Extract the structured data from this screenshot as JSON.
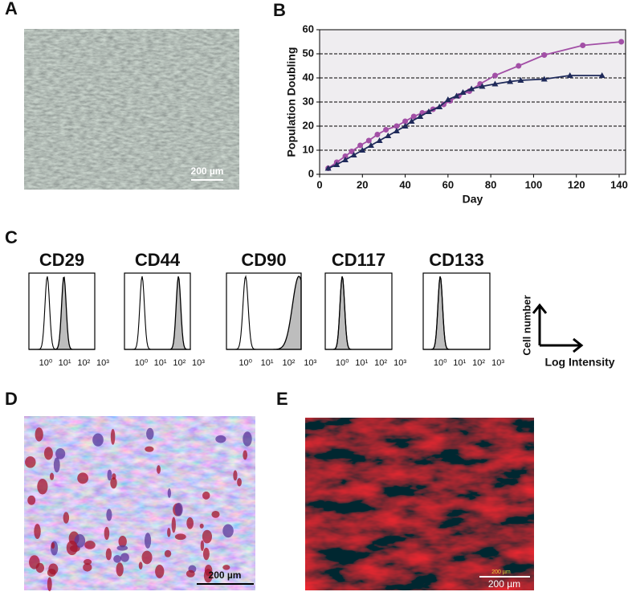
{
  "panels": [
    {
      "label": "A",
      "scale_bar": "200 µm"
    },
    {
      "label": "B"
    },
    {
      "label": "C"
    },
    {
      "label": "D",
      "scale_bar": "200 µm"
    },
    {
      "label": "E",
      "scale_bar": "200 µm",
      "scale_bar_small": "200 µm"
    }
  ],
  "chart_data": {
    "type": "line",
    "ylabel": "Population Doubling",
    "xlabel": "Day",
    "xlim": [
      0,
      143
    ],
    "xticks": [
      0,
      20,
      40,
      60,
      80,
      100,
      120,
      140
    ],
    "ylim": [
      0,
      60
    ],
    "yticks": [
      0,
      10,
      20,
      30,
      40,
      50,
      60
    ],
    "grid": true,
    "series": [
      {
        "color": "#a24fa6",
        "marker": "circle",
        "x": [
          4,
          8,
          12,
          15,
          19,
          23,
          27,
          31,
          36,
          40,
          44,
          48,
          53,
          58,
          61,
          65,
          70,
          75,
          82,
          93,
          105,
          123,
          141
        ],
        "values": [
          2.5,
          5,
          7.5,
          9.5,
          12,
          14,
          16.5,
          18.5,
          20,
          22,
          24,
          25.5,
          27,
          29,
          30.5,
          32.5,
          34.5,
          37.5,
          41,
          45,
          49.5,
          53.5,
          55
        ]
      },
      {
        "color": "#1f2a5a",
        "marker": "triangle",
        "x": [
          4,
          8,
          12,
          16,
          20,
          24,
          28,
          32,
          36,
          40,
          43,
          47,
          51,
          56,
          60,
          64,
          67,
          71,
          76,
          82,
          89,
          94,
          105,
          117,
          132
        ],
        "values": [
          2.5,
          4,
          6,
          8,
          10,
          12,
          14,
          16,
          18,
          20,
          22,
          24,
          26,
          28,
          31,
          32.5,
          34,
          35.5,
          36.5,
          37.5,
          38.5,
          39,
          39.5,
          41,
          41
        ]
      }
    ]
  },
  "flow_cytometry": {
    "type": "histogram-overlay",
    "xscale": "log",
    "xlim": [
      0.13,
      380
    ],
    "xticks": [
      {
        "value": 1,
        "label": "10⁰"
      },
      {
        "value": 10,
        "label": "10¹"
      },
      {
        "value": 100,
        "label": "10²"
      },
      {
        "value": 1000,
        "label": "10³"
      }
    ],
    "histograms": [
      {
        "name": "CD29",
        "isotype_peak": 1.2,
        "stained_peak": 9
      },
      {
        "name": "CD44",
        "isotype_peak": 1.1,
        "stained_peak": 90
      },
      {
        "name": "CD90",
        "isotype_peak": 1.0,
        "stained_peak": 300
      },
      {
        "name": "CD117",
        "isotype_peak": 1.0,
        "stained_peak": 1.0
      },
      {
        "name": "CD133",
        "isotype_peak": 1.0,
        "stained_peak": 1.0
      }
    ],
    "legend": {
      "y_label": "Cell number",
      "x_label": "Log Intensity"
    }
  }
}
